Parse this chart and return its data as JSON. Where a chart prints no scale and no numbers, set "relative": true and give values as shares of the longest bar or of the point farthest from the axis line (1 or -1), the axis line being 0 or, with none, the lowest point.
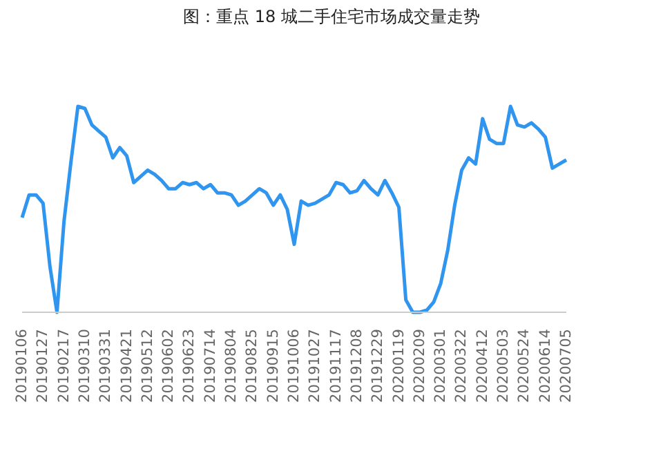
{
  "chart_data": {
    "type": "line",
    "title": "图：重点 18 城二手住宅市场成交量走势",
    "relative": true,
    "marker": "none",
    "grid": false,
    "legend": false,
    "categories": [
      "20190106",
      null,
      null,
      "20190127",
      null,
      null,
      "20190217",
      null,
      null,
      "20190310",
      null,
      null,
      "20190331",
      null,
      null,
      "20190421",
      null,
      null,
      "20190512",
      null,
      null,
      "20190602",
      null,
      null,
      "20190623",
      null,
      null,
      "20190714",
      null,
      null,
      "20190804",
      null,
      null,
      "20190825",
      null,
      null,
      "20190915",
      null,
      null,
      "20191006",
      null,
      null,
      "20191027",
      null,
      null,
      "20191117",
      null,
      null,
      "20191208",
      null,
      null,
      "20191229",
      null,
      null,
      "20200119",
      null,
      null,
      "20200209",
      null,
      null,
      "20200301",
      null,
      null,
      "20200322",
      null,
      null,
      "20200412",
      null,
      null,
      "20200503",
      null,
      null,
      "20200524",
      null,
      null,
      "20200614",
      null,
      null,
      "20200705"
    ],
    "series": [
      {
        "color": "#2f95ee",
        "values": [
          0.46,
          0.57,
          0.57,
          0.53,
          0.22,
          0,
          0.44,
          0.73,
          1,
          0.99,
          0.91,
          0.88,
          0.85,
          0.75,
          0.8,
          0.76,
          0.63,
          0.66,
          0.69,
          0.67,
          0.64,
          0.6,
          0.6,
          0.63,
          0.62,
          0.63,
          0.6,
          0.62,
          0.58,
          0.58,
          0.57,
          0.52,
          0.54,
          0.57,
          0.6,
          0.58,
          0.52,
          0.57,
          0.5,
          0.33,
          0.54,
          0.52,
          0.53,
          0.55,
          0.57,
          0.63,
          0.62,
          0.58,
          0.59,
          0.64,
          0.6,
          0.57,
          0.64,
          0.58,
          0.51,
          0.06,
          0,
          0,
          0.01,
          0.05,
          0.14,
          0.3,
          0.52,
          0.69,
          0.75,
          0.72,
          0.94,
          0.84,
          0.82,
          0.82,
          1,
          0.91,
          0.9,
          0.92,
          0.89,
          0.85,
          0.7,
          0.72,
          0.74
        ]
      }
    ]
  }
}
